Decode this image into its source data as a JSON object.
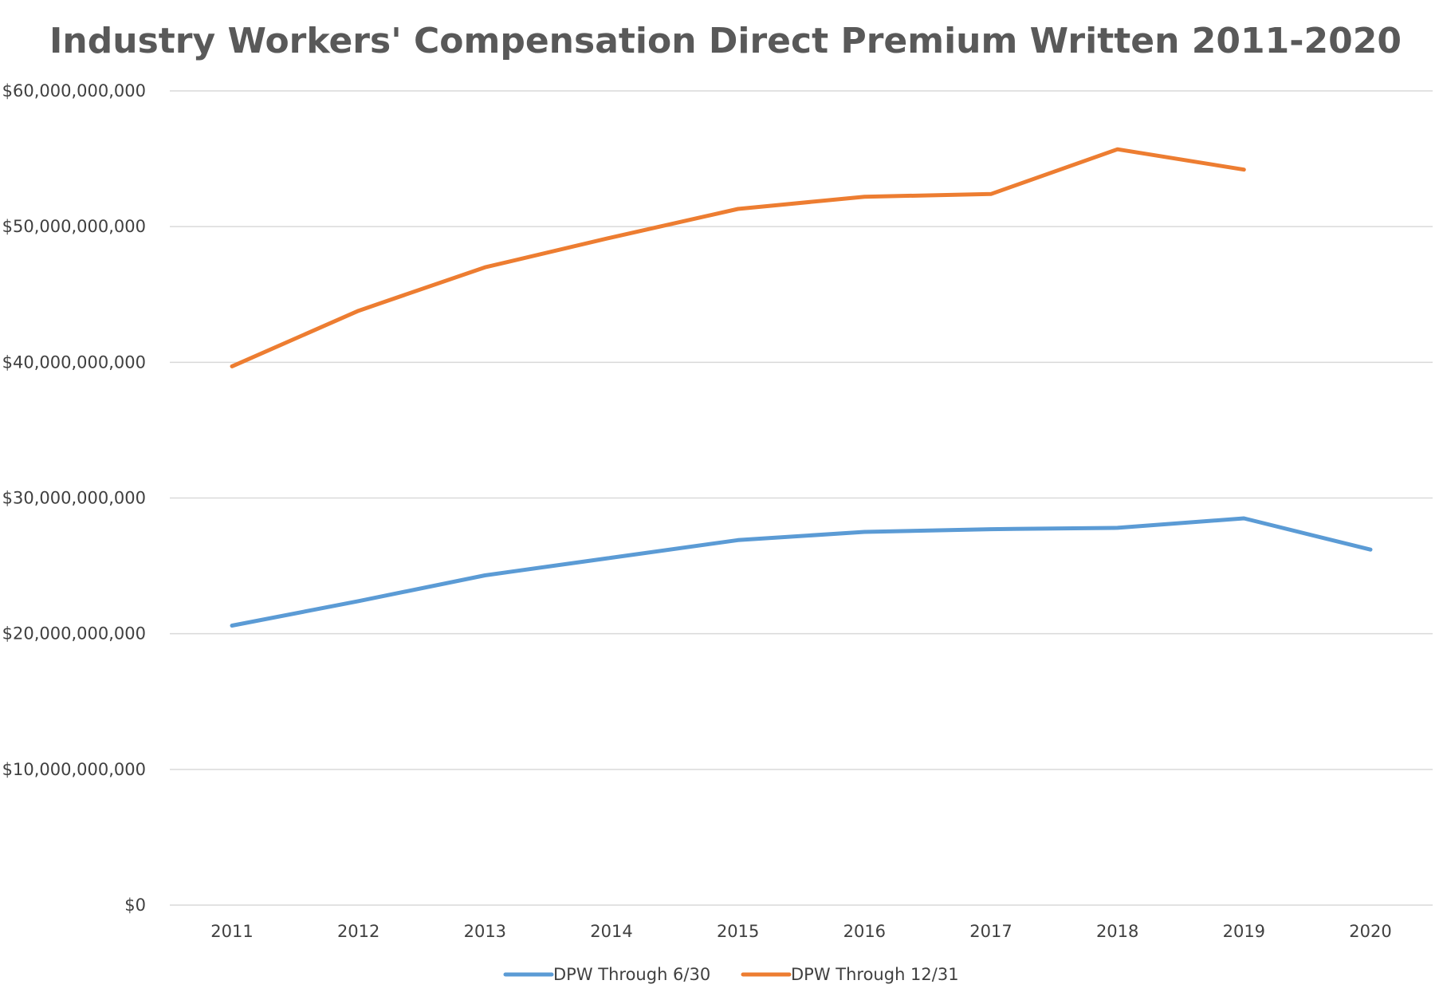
{
  "chart_data": {
    "type": "line",
    "title": "Industry Workers' Compensation Direct Premium Written 2011-2020",
    "xlabel": "",
    "ylabel": "",
    "categories": [
      "2011",
      "2012",
      "2013",
      "2014",
      "2015",
      "2016",
      "2017",
      "2018",
      "2019",
      "2020"
    ],
    "ylim": [
      0,
      60000000000
    ],
    "yticks": [
      0,
      10000000000,
      20000000000,
      30000000000,
      40000000000,
      50000000000,
      60000000000
    ],
    "ytick_labels": [
      "$0",
      "$10,000,000,000",
      "$20,000,000,000",
      "$30,000,000,000",
      "$40,000,000,000",
      "$50,000,000,000",
      "$60,000,000,000"
    ],
    "grid": true,
    "legend_position": "bottom-center",
    "series": [
      {
        "name": "DPW Through 6/30",
        "color": "#5b9bd5",
        "values": [
          20600000000,
          22400000000,
          24300000000,
          25600000000,
          26900000000,
          27500000000,
          27700000000,
          27800000000,
          28500000000,
          26200000000
        ]
      },
      {
        "name": "DPW Through 12/31",
        "color": "#ed7d31",
        "values": [
          39700000000,
          43800000000,
          47000000000,
          49200000000,
          51300000000,
          52200000000,
          52400000000,
          55700000000,
          54200000000,
          null
        ]
      }
    ]
  }
}
